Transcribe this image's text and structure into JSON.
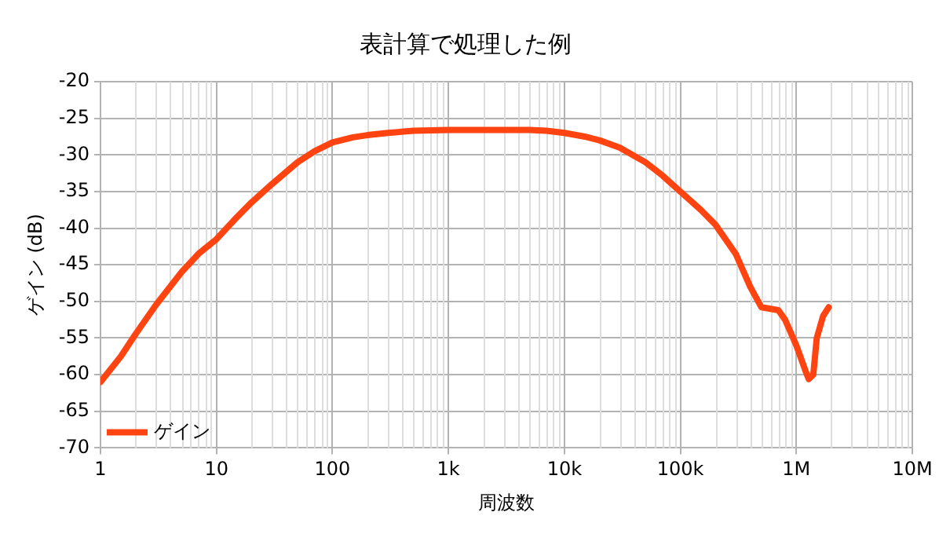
{
  "chart_data": {
    "type": "line",
    "title": "表計算で処理した例",
    "xlabel": "周波数",
    "ylabel": "ゲイン (dB)",
    "log": "x",
    "x": [
      1,
      1.5,
      2,
      3,
      5,
      7,
      10,
      15,
      20,
      30,
      50,
      70,
      100,
      150,
      200,
      300,
      500,
      1000,
      2000,
      5000,
      7000,
      10000,
      15000,
      20000,
      30000,
      50000,
      70000,
      100000,
      150000,
      200000,
      300000,
      400000,
      500000,
      700000,
      800000,
      1000000,
      1200000,
      1280000,
      1400000,
      1500000,
      1700000,
      1900000
    ],
    "series": [
      {
        "name": "ゲイン",
        "color": "#ff4412",
        "values": [
          -61,
          -57.5,
          -54.5,
          -50.5,
          -46,
          -43.5,
          -41.5,
          -38.5,
          -36.5,
          -34,
          -31,
          -29.5,
          -28.3,
          -27.6,
          -27.3,
          -27,
          -26.7,
          -26.6,
          -26.6,
          -26.6,
          -26.7,
          -27,
          -27.5,
          -28,
          -29,
          -31,
          -32.8,
          -35,
          -37.5,
          -39.5,
          -43.5,
          -48,
          -50.8,
          -51.2,
          -52.5,
          -56,
          -59.5,
          -60.6,
          -60,
          -55,
          -52,
          -50.8
        ]
      }
    ],
    "xlim": [
      1,
      10000000
    ],
    "xticks": [
      1,
      10,
      100,
      {
        "value": 1000,
        "label": "1k"
      },
      {
        "value": 10000,
        "label": "10k"
      },
      {
        "value": 100000,
        "label": "100k"
      },
      {
        "value": 1000000,
        "label": "1M"
      },
      {
        "value": 10000000,
        "label": "10M"
      }
    ],
    "ylim": [
      -70,
      -20
    ],
    "yticks": [
      -70,
      -65,
      -60,
      -55,
      -50,
      -45,
      -40,
      -35,
      -30,
      -25,
      -20
    ],
    "grid": true,
    "legend": "bottom left",
    "marker": "none",
    "line_style": "solid"
  }
}
